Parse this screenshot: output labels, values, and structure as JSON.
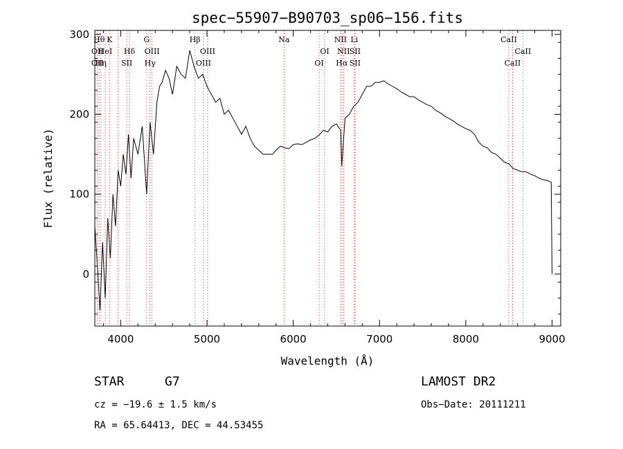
{
  "chart_data": {
    "type": "line",
    "title": "spec−55907−B90703_sp06−156.fits",
    "xlabel": "Wavelength (Å)",
    "ylabel": "Flux (relative)",
    "xlim": [
      3700,
      9100
    ],
    "ylim": [
      -65,
      305
    ],
    "xticks": [
      4000,
      5000,
      6000,
      7000,
      8000,
      9000
    ],
    "yticks": [
      0,
      100,
      200,
      300
    ],
    "grid": false,
    "series": [
      {
        "x": [
          3700,
          3730,
          3760,
          3790,
          3820,
          3850,
          3880,
          3910,
          3940,
          3970,
          4000,
          4030,
          4060,
          4090,
          4120,
          4150,
          4200,
          4250,
          4300,
          4340,
          4380,
          4420,
          4450,
          4480,
          4520,
          4560,
          4600,
          4650,
          4700,
          4750,
          4800,
          4850,
          4900,
          4950,
          5000,
          5050,
          5100,
          5150,
          5200,
          5250,
          5300,
          5350,
          5400,
          5450,
          5500,
          5550,
          5600,
          5650,
          5700,
          5760,
          5800,
          5850,
          5900,
          5950,
          6000,
          6050,
          6100,
          6150,
          6200,
          6250,
          6300,
          6350,
          6400,
          6450,
          6500,
          6550,
          6562,
          6600,
          6650,
          6700,
          6750,
          6800,
          6850,
          6900,
          6950,
          7000,
          7050,
          7100,
          7150,
          7200,
          7250,
          7300,
          7350,
          7400,
          7450,
          7500,
          7550,
          7600,
          7650,
          7700,
          7750,
          7800,
          7850,
          7900,
          7950,
          8000,
          8050,
          8100,
          8150,
          8200,
          8250,
          8300,
          8350,
          8400,
          8450,
          8500,
          8550,
          8600,
          8650,
          8700,
          8750,
          8800,
          8850,
          8900,
          8950,
          8990,
          9000
        ],
        "y": [
          60,
          10,
          -45,
          40,
          -30,
          70,
          20,
          100,
          60,
          130,
          110,
          150,
          125,
          175,
          120,
          170,
          150,
          185,
          100,
          190,
          150,
          215,
          235,
          240,
          255,
          245,
          225,
          260,
          250,
          245,
          280,
          260,
          245,
          250,
          235,
          225,
          215,
          220,
          200,
          205,
          195,
          185,
          175,
          185,
          170,
          160,
          155,
          150,
          150,
          150,
          155,
          160,
          158,
          157,
          162,
          163,
          162,
          165,
          168,
          170,
          174,
          180,
          178,
          185,
          188,
          180,
          135,
          195,
          200,
          210,
          215,
          225,
          235,
          235,
          240,
          240,
          242,
          238,
          235,
          232,
          228,
          225,
          222,
          222,
          218,
          215,
          212,
          210,
          205,
          202,
          198,
          195,
          192,
          188,
          185,
          182,
          180,
          175,
          165,
          160,
          158,
          152,
          150,
          145,
          140,
          138,
          132,
          130,
          128,
          128,
          125,
          123,
          120,
          118,
          117,
          115,
          0
        ]
      }
    ],
    "lines": [
      {
        "x": 3730,
        "labels": [
          "",
          "OII",
          "OII"
        ]
      },
      {
        "x": 3750,
        "labels": [
          "Hθ",
          "",
          ""
        ]
      },
      {
        "x": 3770,
        "labels": [
          "",
          "",
          "Hη"
        ]
      },
      {
        "x": 3820,
        "labels": [
          "",
          "HeI",
          ""
        ]
      },
      {
        "x": 3870,
        "labels": [
          "K",
          "",
          ""
        ]
      },
      {
        "x": 3970,
        "labels": [
          "",
          "",
          ""
        ]
      },
      {
        "x": 4070,
        "labels": [
          "",
          "",
          "SII"
        ]
      },
      {
        "x": 4101,
        "labels": [
          "",
          "Hδ",
          ""
        ]
      },
      {
        "x": 4300,
        "labels": [
          "G",
          "",
          ""
        ]
      },
      {
        "x": 4340,
        "labels": [
          "",
          "",
          "Hγ"
        ]
      },
      {
        "x": 4363,
        "labels": [
          "",
          "OIII",
          ""
        ]
      },
      {
        "x": 4861,
        "labels": [
          "Hβ",
          "",
          ""
        ]
      },
      {
        "x": 4959,
        "labels": [
          "",
          "",
          "OIII"
        ]
      },
      {
        "x": 5007,
        "labels": [
          "",
          "OIII",
          ""
        ]
      },
      {
        "x": 5893,
        "labels": [
          "Na",
          "",
          ""
        ]
      },
      {
        "x": 6300,
        "labels": [
          "",
          "",
          "OI"
        ]
      },
      {
        "x": 6364,
        "labels": [
          "",
          "OI",
          ""
        ]
      },
      {
        "x": 6548,
        "labels": [
          "NII",
          "",
          ""
        ]
      },
      {
        "x": 6563,
        "labels": [
          "",
          "",
          "Hα"
        ]
      },
      {
        "x": 6583,
        "labels": [
          "",
          "NII",
          ""
        ]
      },
      {
        "x": 6708,
        "labels": [
          "Li",
          "",
          ""
        ]
      },
      {
        "x": 6716,
        "labels": [
          "",
          "SII",
          "SII"
        ]
      },
      {
        "x": 8498,
        "labels": [
          "CaII",
          "",
          ""
        ]
      },
      {
        "x": 8542,
        "labels": [
          "",
          "",
          "CaII"
        ]
      },
      {
        "x": 8662,
        "labels": [
          "",
          "CaII",
          ""
        ]
      }
    ]
  },
  "info": {
    "object_class": "STAR",
    "subclass": "G7",
    "survey": "LAMOST DR2",
    "cz": "cz = −19.6 ± 1.5 km/s",
    "obs_date": "Obs−Date: 20111211",
    "radec": "RA =  65.64413, DEC =  44.53455"
  },
  "colors": {
    "line_markers": "#cc0000",
    "spectrum": "#000000"
  }
}
